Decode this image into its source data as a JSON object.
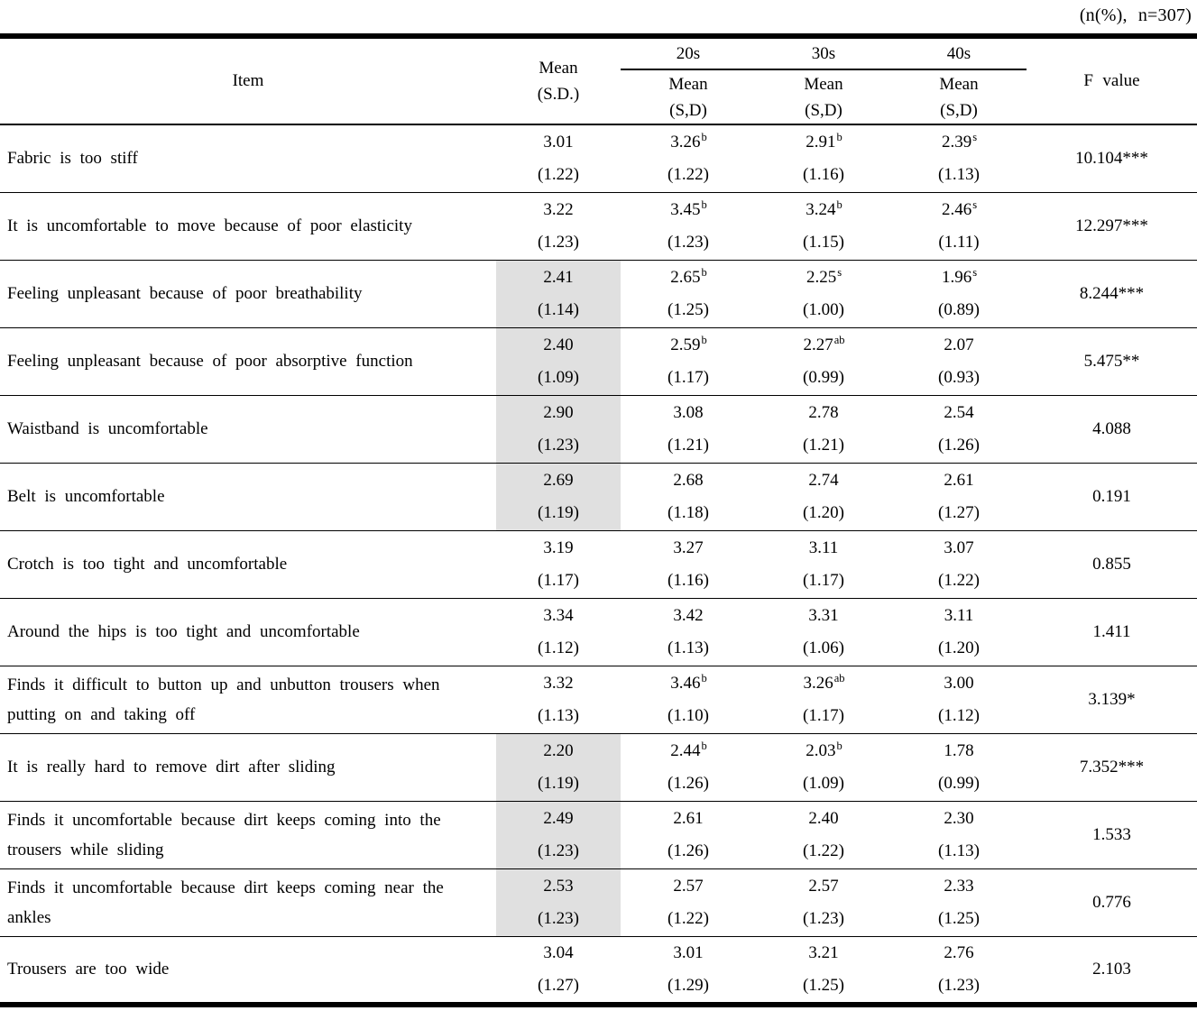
{
  "note": "(n(%), n=307)",
  "colors": {
    "shade": "#e0e0e0",
    "text": "#000000",
    "background": "#ffffff"
  },
  "header": {
    "item": "Item",
    "overall_line1": "Mean",
    "overall_line2": "(S.D.)",
    "age_groups": [
      "20s",
      "30s",
      "40s"
    ],
    "sub_line1": "Mean",
    "sub_line2": "(S,D)",
    "f_value": "F value"
  },
  "rows": [
    {
      "item_lines": [
        "Fabric is too stiff"
      ],
      "shaded": false,
      "overall": {
        "mean": "3.01",
        "sd": "(1.22)"
      },
      "groups": [
        {
          "mean": "3.26",
          "sup": "b",
          "sd": "(1.22)"
        },
        {
          "mean": "2.91",
          "sup": "b",
          "sd": "(1.16)"
        },
        {
          "mean": "2.39",
          "sup": "s",
          "sd": "(1.13)"
        }
      ],
      "f": "10.104***"
    },
    {
      "item_lines": [
        "It is uncomfortable to move because of poor elasticity"
      ],
      "shaded": false,
      "overall": {
        "mean": "3.22",
        "sd": "(1.23)"
      },
      "groups": [
        {
          "mean": "3.45",
          "sup": "b",
          "sd": "(1.23)"
        },
        {
          "mean": "3.24",
          "sup": "b",
          "sd": "(1.15)"
        },
        {
          "mean": "2.46",
          "sup": "s",
          "sd": "(1.11)"
        }
      ],
      "f": "12.297***"
    },
    {
      "item_lines": [
        "Feeling unpleasant because of poor breathability"
      ],
      "shaded": true,
      "overall": {
        "mean": "2.41",
        "sd": "(1.14)"
      },
      "groups": [
        {
          "mean": "2.65",
          "sup": "b",
          "sd": "(1.25)"
        },
        {
          "mean": "2.25",
          "sup": "s",
          "sd": "(1.00)"
        },
        {
          "mean": "1.96",
          "sup": "s",
          "sd": "(0.89)"
        }
      ],
      "f": "8.244***"
    },
    {
      "item_lines": [
        "Feeling unpleasant because of poor absorptive function"
      ],
      "shaded": true,
      "overall": {
        "mean": "2.40",
        "sd": "(1.09)"
      },
      "groups": [
        {
          "mean": "2.59",
          "sup": "b",
          "sd": "(1.17)"
        },
        {
          "mean": "2.27",
          "sup": "ab",
          "sd": "(0.99)"
        },
        {
          "mean": "2.07",
          "sup": "",
          "sd": "(0.93)"
        }
      ],
      "f": "5.475**"
    },
    {
      "item_lines": [
        "Waistband is uncomfortable"
      ],
      "shaded": true,
      "overall": {
        "mean": "2.90",
        "sd": "(1.23)"
      },
      "groups": [
        {
          "mean": "3.08",
          "sup": "",
          "sd": "(1.21)"
        },
        {
          "mean": "2.78",
          "sup": "",
          "sd": "(1.21)"
        },
        {
          "mean": "2.54",
          "sup": "",
          "sd": "(1.26)"
        }
      ],
      "f": "4.088"
    },
    {
      "item_lines": [
        "Belt is uncomfortable"
      ],
      "shaded": true,
      "overall": {
        "mean": "2.69",
        "sd": "(1.19)"
      },
      "groups": [
        {
          "mean": "2.68",
          "sup": "",
          "sd": "(1.18)"
        },
        {
          "mean": "2.74",
          "sup": "",
          "sd": "(1.20)"
        },
        {
          "mean": "2.61",
          "sup": "",
          "sd": "(1.27)"
        }
      ],
      "f": "0.191"
    },
    {
      "item_lines": [
        "Crotch is too tight and uncomfortable"
      ],
      "shaded": false,
      "overall": {
        "mean": "3.19",
        "sd": "(1.17)"
      },
      "groups": [
        {
          "mean": "3.27",
          "sup": "",
          "sd": "(1.16)"
        },
        {
          "mean": "3.11",
          "sup": "",
          "sd": "(1.17)"
        },
        {
          "mean": "3.07",
          "sup": "",
          "sd": "(1.22)"
        }
      ],
      "f": "0.855"
    },
    {
      "item_lines": [
        "Around the hips is too tight and uncomfortable"
      ],
      "shaded": false,
      "overall": {
        "mean": "3.34",
        "sd": "(1.12)"
      },
      "groups": [
        {
          "mean": "3.42",
          "sup": "",
          "sd": "(1.13)"
        },
        {
          "mean": "3.31",
          "sup": "",
          "sd": "(1.06)"
        },
        {
          "mean": "3.11",
          "sup": "",
          "sd": "(1.20)"
        }
      ],
      "f": "1.411"
    },
    {
      "item_lines": [
        "Finds it difficult to button up and unbutton trousers when",
        "putting on and taking off"
      ],
      "shaded": false,
      "overall": {
        "mean": "3.32",
        "sd": "(1.13)"
      },
      "groups": [
        {
          "mean": "3.46",
          "sup": "b",
          "sd": "(1.10)"
        },
        {
          "mean": "3.26",
          "sup": "ab",
          "sd": "(1.17)"
        },
        {
          "mean": "3.00",
          "sup": "",
          "sd": "(1.12)"
        }
      ],
      "f": "3.139*"
    },
    {
      "item_lines": [
        "It is really hard to remove dirt after sliding"
      ],
      "shaded": true,
      "overall": {
        "mean": "2.20",
        "sd": "(1.19)"
      },
      "groups": [
        {
          "mean": "2.44",
          "sup": "b",
          "sd": "(1.26)"
        },
        {
          "mean": "2.03",
          "sup": "b",
          "sd": "(1.09)"
        },
        {
          "mean": "1.78",
          "sup": "",
          "sd": "(0.99)"
        }
      ],
      "f": "7.352***"
    },
    {
      "item_lines": [
        "Finds it uncomfortable because dirt keeps coming into the",
        "trousers while sliding"
      ],
      "shaded": true,
      "overall": {
        "mean": "2.49",
        "sd": "(1.23)"
      },
      "groups": [
        {
          "mean": "2.61",
          "sup": "",
          "sd": "(1.26)"
        },
        {
          "mean": "2.40",
          "sup": "",
          "sd": "(1.22)"
        },
        {
          "mean": "2.30",
          "sup": "",
          "sd": "(1.13)"
        }
      ],
      "f": "1.533"
    },
    {
      "item_lines": [
        "Finds it uncomfortable because dirt keeps coming near the",
        "ankles"
      ],
      "shaded": true,
      "overall": {
        "mean": "2.53",
        "sd": "(1.23)"
      },
      "groups": [
        {
          "mean": "2.57",
          "sup": "",
          "sd": "(1.22)"
        },
        {
          "mean": "2.57",
          "sup": "",
          "sd": "(1.23)"
        },
        {
          "mean": "2.33",
          "sup": "",
          "sd": "(1.25)"
        }
      ],
      "f": "0.776"
    },
    {
      "item_lines": [
        "Trousers are too wide"
      ],
      "shaded": false,
      "overall": {
        "mean": "3.04",
        "sd": "(1.27)"
      },
      "groups": [
        {
          "mean": "3.01",
          "sup": "",
          "sd": "(1.29)"
        },
        {
          "mean": "3.21",
          "sup": "",
          "sd": "(1.25)"
        },
        {
          "mean": "2.76",
          "sup": "",
          "sd": "(1.23)"
        }
      ],
      "f": "2.103"
    }
  ]
}
